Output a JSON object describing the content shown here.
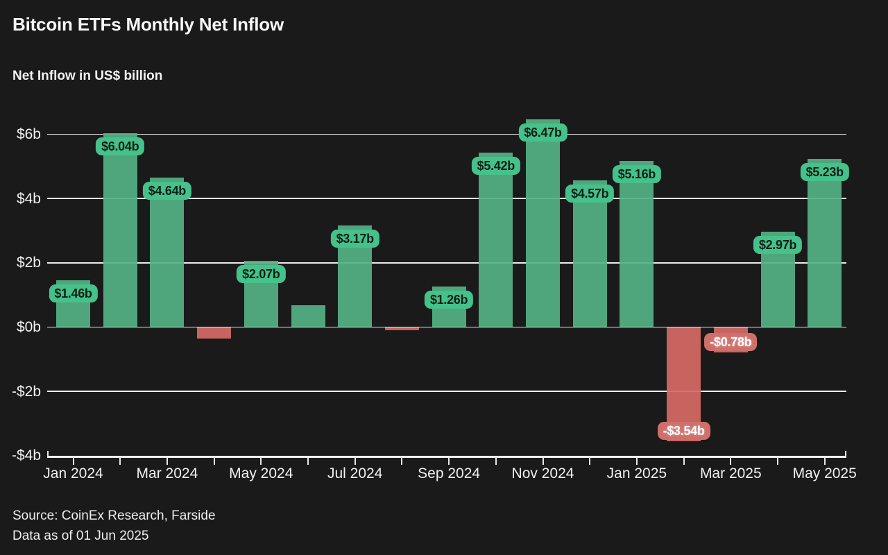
{
  "header": {
    "title": "Bitcoin ETFs Monthly Net Inflow",
    "subtitle": "Net Inflow in US$ billion"
  },
  "footer": {
    "source": "Source: CoinEx Research, Farside",
    "as_of": "Data as of 01 Jun 2025"
  },
  "chart_data": {
    "type": "bar",
    "title": "Bitcoin ETFs Monthly Net Inflow",
    "ylabel": "Net Inflow in US$ billion",
    "ylim": [
      -4,
      6
    ],
    "grid": "horizontal",
    "legend": "none",
    "yticks": [
      {
        "value": 6,
        "label": "$6b"
      },
      {
        "value": 4,
        "label": "$4b"
      },
      {
        "value": 2,
        "label": "$2b"
      },
      {
        "value": 0,
        "label": "$0b"
      },
      {
        "value": -2,
        "label": "-$2b"
      },
      {
        "value": -4,
        "label": "-$4b"
      }
    ],
    "x_tick_labels": [
      "Jan 2024",
      "Mar 2024",
      "May 2024",
      "Jul 2024",
      "Sep 2024",
      "Nov 2024",
      "Jan 2025",
      "Mar 2025",
      "May 2025"
    ],
    "points": [
      {
        "category": "Jan 2024",
        "value": 1.46,
        "label": "$1.46b"
      },
      {
        "category": "Feb 2024",
        "value": 6.04,
        "label": "$6.04b"
      },
      {
        "category": "Mar 2024",
        "value": 4.64,
        "label": "$4.64b"
      },
      {
        "category": "Apr 2024",
        "value": -0.35,
        "label": null
      },
      {
        "category": "May 2024",
        "value": 2.07,
        "label": "$2.07b"
      },
      {
        "category": "Jun 2024",
        "value": 0.67,
        "label": null
      },
      {
        "category": "Jul 2024",
        "value": 3.17,
        "label": "$3.17b"
      },
      {
        "category": "Aug 2024",
        "value": -0.09,
        "label": null
      },
      {
        "category": "Sep 2024",
        "value": 1.26,
        "label": "$1.26b"
      },
      {
        "category": "Oct 2024",
        "value": 5.42,
        "label": "$5.42b"
      },
      {
        "category": "Nov 2024",
        "value": 6.47,
        "label": "$6.47b"
      },
      {
        "category": "Dec 2024",
        "value": 4.57,
        "label": "$4.57b"
      },
      {
        "category": "Jan 2025",
        "value": 5.16,
        "label": "$5.16b"
      },
      {
        "category": "Feb 2025",
        "value": -3.54,
        "label": "-$3.54b"
      },
      {
        "category": "Mar 2025",
        "value": -0.78,
        "label": "-$0.78b"
      },
      {
        "category": "Apr 2025",
        "value": 2.97,
        "label": "$2.97b"
      },
      {
        "category": "May 2025",
        "value": 5.23,
        "label": "$5.23b"
      }
    ],
    "colors": {
      "background": "#1a1a1a",
      "positive_bar": "#54b286",
      "negative_bar": "#d66a66",
      "positive_label_bg": "#45c18b",
      "negative_label_bg": "#cf6f6b",
      "positive_label_text": "#0e1f16",
      "negative_label_text": "#ffffff",
      "gridline": "#ececec",
      "axis_text": "#f2f2f2"
    }
  }
}
